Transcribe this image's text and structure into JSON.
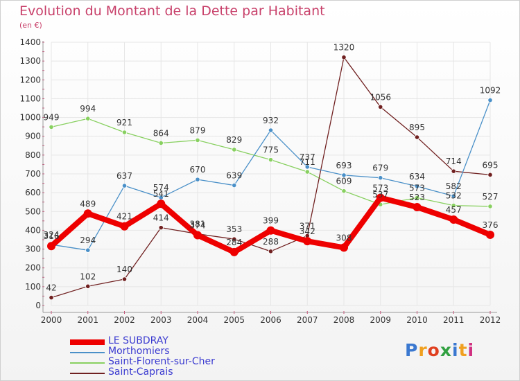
{
  "chart_data": {
    "type": "line",
    "title": "Evolution du Montant de la Dette par Habitant",
    "subtitle": "(en €)",
    "x": [
      "2000",
      "2001",
      "2002",
      "2003",
      "2004",
      "2005",
      "2006",
      "2007",
      "2008",
      "2009",
      "2010",
      "2011",
      "2012"
    ],
    "ylim": [
      0,
      1400
    ],
    "yticks": [
      0,
      100,
      200,
      300,
      400,
      500,
      600,
      700,
      800,
      900,
      1000,
      1100,
      1200,
      1300,
      1400
    ],
    "grid": true,
    "legend_position": "bottom-left",
    "series": [
      {
        "name": "LE SUBDRAY",
        "color": "#ee0000",
        "values": [
          316,
          489,
          421,
          541,
          374,
          284,
          399,
          342,
          308,
          573,
          523,
          457,
          376
        ]
      },
      {
        "name": "Morthomiers",
        "color": "#4a90c8",
        "values": [
          324,
          294,
          637,
          574,
          670,
          639,
          932,
          737,
          693,
          679,
          634,
          582,
          1092
        ]
      },
      {
        "name": "Saint-Florent-sur-Cher",
        "color": "#88d060",
        "values": [
          949,
          994,
          921,
          864,
          879,
          829,
          775,
          711,
          609,
          537,
          573,
          532,
          527
        ]
      },
      {
        "name": "Saint-Caprais",
        "color": "#702020",
        "values": [
          42,
          102,
          140,
          414,
          381,
          353,
          288,
          371,
          1320,
          1056,
          895,
          714,
          695
        ]
      }
    ]
  },
  "logo": {
    "text": "Proxiti",
    "letters": [
      {
        "c": "P",
        "color": "#3a78d0"
      },
      {
        "c": "r",
        "color": "#f0a020"
      },
      {
        "c": "o",
        "color": "#e04020"
      },
      {
        "c": "x",
        "color": "#30a040"
      },
      {
        "c": "i",
        "color": "#3a78d0"
      },
      {
        "c": "t",
        "color": "#f0a020"
      },
      {
        "c": "i",
        "color": "#d03080"
      }
    ]
  }
}
